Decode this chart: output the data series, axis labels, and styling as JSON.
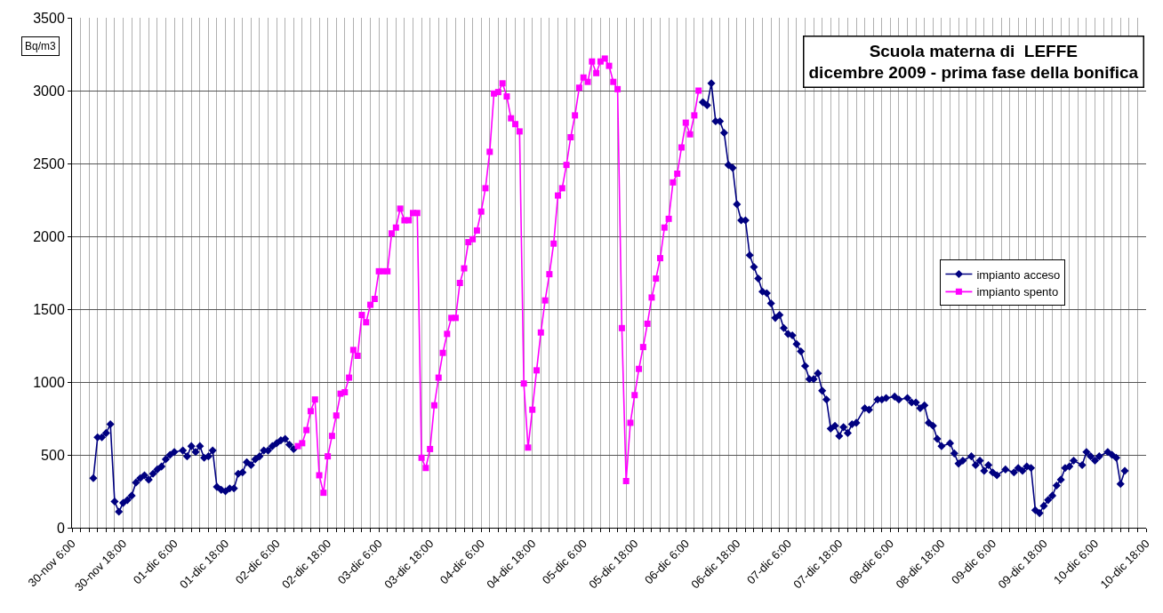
{
  "chart_data": {
    "type": "line",
    "title": "Scuola materna di  LEFFE\ndicembre 2009 - prima fase della bonifica",
    "ylabel": "Bq/m3",
    "xlim": [
      "--11-30T06:00",
      "--12-10T18:00"
    ],
    "ylim": [
      0,
      3500
    ],
    "yticks": [
      0,
      500,
      1000,
      1500,
      2000,
      2500,
      3000,
      3500
    ],
    "grid": true,
    "legend": "right",
    "line_style": "solid",
    "series": [
      {
        "name": "impianto acceso",
        "color": "#000080",
        "marker": "diamond",
        "x": [
          "--11-30T11:00",
          "--11-30T12:00",
          "--11-30T13:00",
          "--11-30T14:00",
          "--11-30T15:00",
          "--11-30T16:00",
          "--11-30T17:00",
          "--11-30T18:00",
          "--11-30T19:00",
          "--11-30T20:00",
          "--11-30T21:00",
          "--11-30T22:00",
          "--11-30T23:00",
          "--12-01T00:00",
          "--12-01T01:00",
          "--12-01T02:00",
          "--12-01T03:00",
          "--12-01T04:00",
          "--12-01T05:00",
          "--12-01T06:00",
          "--12-01T08:00",
          "--12-01T09:00",
          "--12-01T10:00",
          "--12-01T11:00",
          "--12-01T12:00",
          "--12-01T13:00",
          "--12-01T14:00",
          "--12-01T15:00",
          "--12-01T16:00",
          "--12-01T17:00",
          "--12-01T18:00",
          "--12-01T19:00",
          "--12-01T20:00",
          "--12-01T21:00",
          "--12-01T22:00",
          "--12-01T23:00",
          "--12-02T00:00",
          "--12-02T01:00",
          "--12-02T02:00",
          "--12-02T03:00",
          "--12-02T04:00",
          "--12-02T05:00",
          "--12-02T06:00",
          "--12-02T07:00",
          "--12-02T08:00",
          "--12-02T09:00",
          "--12-02T10:00",
          "--12-04T00:00",
          "--12-06T10:00",
          "--12-06T11:00",
          "--12-06T12:00",
          "--12-06T13:00",
          "--12-06T14:00",
          "--12-06T15:00",
          "--12-06T16:00",
          "--12-06T17:00",
          "--12-06T18:00",
          "--12-06T19:00",
          "--12-06T20:00",
          "--12-06T21:00",
          "--12-06T22:00",
          "--12-06T23:00",
          "--12-07T00:00",
          "--12-07T01:00",
          "--12-07T02:00",
          "--12-07T03:00",
          "--12-07T04:00",
          "--12-07T05:00",
          "--12-07T06:00",
          "--12-07T07:00",
          "--12-07T08:00",
          "--12-07T09:00",
          "--12-07T10:00",
          "--12-07T11:00",
          "--12-07T12:00",
          "--12-07T13:00",
          "--12-07T14:00",
          "--12-07T15:00",
          "--12-07T16:00",
          "--12-07T17:00",
          "--12-07T18:00",
          "--12-07T19:00",
          "--12-07T20:00",
          "--12-07T21:00",
          "--12-07T22:00",
          "--12-08T00:00",
          "--12-08T01:00",
          "--12-08T03:00",
          "--12-08T04:00",
          "--12-08T05:00",
          "--12-08T07:00",
          "--12-08T08:00",
          "--12-08T10:00",
          "--12-08T11:00",
          "--12-08T12:00",
          "--12-08T13:00",
          "--12-08T14:00",
          "--12-08T15:00",
          "--12-08T16:00",
          "--12-08T17:00",
          "--12-08T18:00",
          "--12-08T20:00",
          "--12-08T21:00",
          "--12-08T22:00",
          "--12-08T23:00",
          "--12-09T01:00",
          "--12-09T02:00",
          "--12-09T03:00",
          "--12-09T04:00",
          "--12-09T05:00",
          "--12-09T06:00",
          "--12-09T07:00",
          "--12-09T09:00",
          "--12-09T11:00",
          "--12-09T12:00",
          "--12-09T13:00",
          "--12-09T14:00",
          "--12-09T15:00",
          "--12-09T16:00",
          "--12-09T17:00",
          "--12-09T18:00",
          "--12-09T19:00",
          "--12-09T20:00",
          "--12-09T21:00",
          "--12-09T22:00",
          "--12-09T23:00",
          "--12-10T00:00",
          "--12-10T01:00",
          "--12-10T03:00",
          "--12-10T04:00",
          "--12-10T05:00",
          "--12-10T06:00",
          "--12-10T07:00",
          "--12-10T09:00",
          "--12-10T10:00",
          "--12-10T11:00",
          "--12-10T12:00",
          "--12-10T13:00"
        ],
        "values": [
          340,
          620,
          620,
          650,
          710,
          180,
          110,
          170,
          190,
          220,
          310,
          340,
          360,
          330,
          370,
          400,
          420,
          470,
          500,
          520,
          530,
          490,
          560,
          520,
          560,
          480,
          490,
          530,
          280,
          260,
          250,
          270,
          270,
          370,
          380,
          450,
          430,
          470,
          490,
          530,
          530,
          560,
          580,
          600,
          610,
          570,
          540,
          null,
          2920,
          2900,
          3050,
          2790,
          2790,
          2710,
          2490,
          2470,
          2220,
          2110,
          2110,
          1870,
          1790,
          1710,
          1620,
          1610,
          1540,
          1440,
          1460,
          1370,
          1330,
          1320,
          1260,
          1210,
          1110,
          1020,
          1020,
          1060,
          940,
          880,
          680,
          700,
          630,
          690,
          650,
          710,
          720,
          820,
          810,
          880,
          880,
          890,
          900,
          880,
          890,
          860,
          860,
          820,
          840,
          720,
          700,
          610,
          560,
          580,
          510,
          440,
          460,
          490,
          430,
          460,
          390,
          430,
          380,
          360,
          400,
          380,
          410,
          390,
          420,
          410,
          120,
          100,
          150,
          190,
          220,
          290,
          330,
          410,
          420,
          460,
          430,
          520,
          490,
          460,
          490,
          520,
          500,
          480,
          300,
          390
        ]
      },
      {
        "name": "impianto spento",
        "color": "#ff00ff",
        "marker": "square",
        "x": [
          "--12-02T11:00",
          "--12-02T12:00",
          "--12-02T13:00",
          "--12-02T14:00",
          "--12-02T15:00",
          "--12-02T16:00",
          "--12-02T17:00",
          "--12-02T18:00",
          "--12-02T19:00",
          "--12-02T20:00",
          "--12-02T21:00",
          "--12-02T22:00",
          "--12-02T23:00",
          "--12-03T00:00",
          "--12-03T01:00",
          "--12-03T02:00",
          "--12-03T03:00",
          "--12-03T04:00",
          "--12-03T05:00",
          "--12-03T06:00",
          "--12-03T07:00",
          "--12-03T08:00",
          "--12-03T09:00",
          "--12-03T10:00",
          "--12-03T11:00",
          "--12-03T12:00",
          "--12-03T13:00",
          "--12-03T14:00",
          "--12-03T15:00",
          "--12-03T16:00",
          "--12-03T17:00",
          "--12-03T18:00",
          "--12-03T19:00",
          "--12-03T20:00",
          "--12-03T21:00",
          "--12-03T22:00",
          "--12-03T23:00",
          "--12-04T00:00",
          "--12-04T01:00",
          "--12-04T02:00",
          "--12-04T03:00",
          "--12-04T04:00",
          "--12-04T05:00",
          "--12-04T06:00",
          "--12-04T07:00",
          "--12-04T08:00",
          "--12-04T09:00",
          "--12-04T10:00",
          "--12-04T11:00",
          "--12-04T12:00",
          "--12-04T13:00",
          "--12-04T14:00",
          "--12-04T15:00",
          "--12-04T16:00",
          "--12-04T17:00",
          "--12-04T18:00",
          "--12-04T19:00",
          "--12-04T20:00",
          "--12-04T21:00",
          "--12-04T22:00",
          "--12-04T23:00",
          "--12-05T00:00",
          "--12-05T01:00",
          "--12-05T02:00",
          "--12-05T03:00",
          "--12-05T04:00",
          "--12-05T05:00",
          "--12-05T06:00",
          "--12-05T07:00",
          "--12-05T08:00",
          "--12-05T09:00",
          "--12-05T10:00",
          "--12-05T11:00",
          "--12-05T12:00",
          "--12-05T13:00",
          "--12-05T14:00",
          "--12-05T15:00",
          "--12-05T16:00",
          "--12-05T17:00",
          "--12-05T18:00",
          "--12-05T19:00",
          "--12-05T20:00",
          "--12-05T21:00",
          "--12-05T22:00",
          "--12-05T23:00",
          "--12-06T00:00",
          "--12-06T01:00",
          "--12-06T02:00",
          "--12-06T03:00",
          "--12-06T04:00",
          "--12-06T05:00",
          "--12-06T06:00",
          "--12-06T07:00",
          "--12-06T08:00",
          "--12-06T09:00"
        ],
        "values": [
          560,
          580,
          670,
          800,
          880,
          360,
          240,
          490,
          630,
          770,
          920,
          930,
          1030,
          1220,
          1180,
          1460,
          1410,
          1530,
          1570,
          1760,
          1760,
          1760,
          2020,
          2060,
          2190,
          2110,
          2110,
          2160,
          2160,
          480,
          410,
          540,
          840,
          1030,
          1200,
          1330,
          1440,
          1440,
          1680,
          1780,
          1960,
          1980,
          2040,
          2170,
          2330,
          2580,
          2980,
          2990,
          3050,
          2960,
          2810,
          2770,
          2720,
          990,
          550,
          810,
          1080,
          1340,
          1560,
          1740,
          1950,
          2280,
          2330,
          2490,
          2680,
          2830,
          3020,
          3090,
          3060,
          3200,
          3120,
          3200,
          3220,
          3170,
          3060,
          3010,
          1370,
          320,
          720,
          910,
          1090,
          1240,
          1400,
          1580,
          1710,
          1850,
          2060,
          2120,
          2370,
          2430,
          2610,
          2780,
          2700,
          2830,
          3000
        ]
      }
    ],
    "xticks": [
      {
        "value": "--11-30T06:00",
        "label": "30-nov 6:00"
      },
      {
        "value": "--11-30T08:00",
        "label": null
      },
      {
        "value": "--11-30T10:00",
        "label": null
      },
      {
        "value": "--11-30T12:00",
        "label": null
      },
      {
        "value": "--11-30T14:00",
        "label": null
      },
      {
        "value": "--11-30T16:00",
        "label": null
      },
      {
        "value": "--11-30T18:00",
        "label": "30-nov 18:00"
      },
      {
        "value": "--11-30T20:00",
        "label": null
      },
      {
        "value": "--11-30T22:00",
        "label": null
      },
      {
        "value": "--12-01T00:00",
        "label": null
      },
      {
        "value": "--12-01T02:00",
        "label": null
      },
      {
        "value": "--12-01T04:00",
        "label": null
      },
      {
        "value": "--12-01T06:00",
        "label": "01-dic 6:00"
      },
      {
        "value": "--12-01T08:00",
        "label": null
      },
      {
        "value": "--12-01T10:00",
        "label": null
      },
      {
        "value": "--12-01T12:00",
        "label": null
      },
      {
        "value": "--12-01T14:00",
        "label": null
      },
      {
        "value": "--12-01T16:00",
        "label": null
      },
      {
        "value": "--12-01T18:00",
        "label": "01-dic 18:00"
      },
      {
        "value": "--12-01T20:00",
        "label": null
      },
      {
        "value": "--12-01T22:00",
        "label": null
      },
      {
        "value": "--12-02T00:00",
        "label": null
      },
      {
        "value": "--12-02T02:00",
        "label": null
      },
      {
        "value": "--12-02T04:00",
        "label": null
      },
      {
        "value": "--12-02T06:00",
        "label": "02-dic 6:00"
      },
      {
        "value": "--12-02T08:00",
        "label": null
      },
      {
        "value": "--12-02T10:00",
        "label": null
      },
      {
        "value": "--12-02T12:00",
        "label": null
      },
      {
        "value": "--12-02T14:00",
        "label": null
      },
      {
        "value": "--12-02T16:00",
        "label": null
      },
      {
        "value": "--12-02T18:00",
        "label": "02-dic 18:00"
      },
      {
        "value": "--12-02T20:00",
        "label": null
      },
      {
        "value": "--12-02T22:00",
        "label": null
      },
      {
        "value": "--12-03T00:00",
        "label": null
      },
      {
        "value": "--12-03T02:00",
        "label": null
      },
      {
        "value": "--12-03T04:00",
        "label": null
      },
      {
        "value": "--12-03T06:00",
        "label": "03-dic 6:00"
      },
      {
        "value": "--12-03T08:00",
        "label": null
      },
      {
        "value": "--12-03T10:00",
        "label": null
      },
      {
        "value": "--12-03T12:00",
        "label": null
      },
      {
        "value": "--12-03T14:00",
        "label": null
      },
      {
        "value": "--12-03T16:00",
        "label": null
      },
      {
        "value": "--12-03T18:00",
        "label": "03-dic 18:00"
      },
      {
        "value": "--12-03T20:00",
        "label": null
      },
      {
        "value": "--12-03T22:00",
        "label": null
      },
      {
        "value": "--12-04T00:00",
        "label": null
      },
      {
        "value": "--12-04T02:00",
        "label": null
      },
      {
        "value": "--12-04T04:00",
        "label": null
      },
      {
        "value": "--12-04T06:00",
        "label": "04-dic 6:00"
      },
      {
        "value": "--12-04T08:00",
        "label": null
      },
      {
        "value": "--12-04T10:00",
        "label": null
      },
      {
        "value": "--12-04T12:00",
        "label": null
      },
      {
        "value": "--12-04T14:00",
        "label": null
      },
      {
        "value": "--12-04T16:00",
        "label": null
      },
      {
        "value": "--12-04T18:00",
        "label": "04-dic 18:00"
      },
      {
        "value": "--12-04T20:00",
        "label": null
      },
      {
        "value": "--12-04T22:00",
        "label": null
      },
      {
        "value": "--12-05T00:00",
        "label": null
      },
      {
        "value": "--12-05T02:00",
        "label": null
      },
      {
        "value": "--12-05T04:00",
        "label": null
      },
      {
        "value": "--12-05T06:00",
        "label": "05-dic 6:00"
      },
      {
        "value": "--12-05T08:00",
        "label": null
      },
      {
        "value": "--12-05T10:00",
        "label": null
      },
      {
        "value": "--12-05T12:00",
        "label": null
      },
      {
        "value": "--12-05T14:00",
        "label": null
      },
      {
        "value": "--12-05T16:00",
        "label": null
      },
      {
        "value": "--12-05T18:00",
        "label": "05-dic 18:00"
      },
      {
        "value": "--12-05T20:00",
        "label": null
      },
      {
        "value": "--12-05T22:00",
        "label": null
      },
      {
        "value": "--12-06T00:00",
        "label": null
      },
      {
        "value": "--12-06T02:00",
        "label": null
      },
      {
        "value": "--12-06T04:00",
        "label": null
      },
      {
        "value": "--12-06T06:00",
        "label": "06-dic 6:00"
      },
      {
        "value": "--12-06T08:00",
        "label": null
      },
      {
        "value": "--12-06T10:00",
        "label": null
      },
      {
        "value": "--12-06T12:00",
        "label": null
      },
      {
        "value": "--12-06T14:00",
        "label": null
      },
      {
        "value": "--12-06T16:00",
        "label": null
      },
      {
        "value": "--12-06T18:00",
        "label": "06-dic 18:00"
      },
      {
        "value": "--12-06T20:00",
        "label": null
      },
      {
        "value": "--12-06T22:00",
        "label": null
      },
      {
        "value": "--12-07T00:00",
        "label": null
      },
      {
        "value": "--12-07T02:00",
        "label": null
      },
      {
        "value": "--12-07T04:00",
        "label": null
      },
      {
        "value": "--12-07T06:00",
        "label": "07-dic 6:00"
      },
      {
        "value": "--12-07T08:00",
        "label": null
      },
      {
        "value": "--12-07T10:00",
        "label": null
      },
      {
        "value": "--12-07T12:00",
        "label": null
      },
      {
        "value": "--12-07T14:00",
        "label": null
      },
      {
        "value": "--12-07T16:00",
        "label": null
      },
      {
        "value": "--12-07T18:00",
        "label": "07-dic 18:00"
      },
      {
        "value": "--12-07T20:00",
        "label": null
      },
      {
        "value": "--12-07T22:00",
        "label": null
      },
      {
        "value": "--12-08T00:00",
        "label": null
      },
      {
        "value": "--12-08T02:00",
        "label": null
      },
      {
        "value": "--12-08T04:00",
        "label": null
      },
      {
        "value": "--12-08T06:00",
        "label": "08-dic 6:00"
      },
      {
        "value": "--12-08T08:00",
        "label": null
      },
      {
        "value": "--12-08T10:00",
        "label": null
      },
      {
        "value": "--12-08T12:00",
        "label": null
      },
      {
        "value": "--12-08T14:00",
        "label": null
      },
      {
        "value": "--12-08T16:00",
        "label": null
      },
      {
        "value": "--12-08T18:00",
        "label": "08-dic 18:00"
      },
      {
        "value": "--12-08T20:00",
        "label": null
      },
      {
        "value": "--12-08T22:00",
        "label": null
      },
      {
        "value": "--12-09T00:00",
        "label": null
      },
      {
        "value": "--12-09T02:00",
        "label": null
      },
      {
        "value": "--12-09T04:00",
        "label": null
      },
      {
        "value": "--12-09T06:00",
        "label": "09-dic 6:00"
      },
      {
        "value": "--12-09T08:00",
        "label": null
      },
      {
        "value": "--12-09T10:00",
        "label": null
      },
      {
        "value": "--12-09T12:00",
        "label": null
      },
      {
        "value": "--12-09T14:00",
        "label": null
      },
      {
        "value": "--12-09T16:00",
        "label": null
      },
      {
        "value": "--12-09T18:00",
        "label": "09-dic 18:00"
      },
      {
        "value": "--12-09T20:00",
        "label": null
      },
      {
        "value": "--12-09T22:00",
        "label": null
      },
      {
        "value": "--12-10T00:00",
        "label": null
      },
      {
        "value": "--12-10T02:00",
        "label": null
      },
      {
        "value": "--12-10T04:00",
        "label": null
      },
      {
        "value": "--12-10T06:00",
        "label": "10-dic 6:00"
      },
      {
        "value": "--12-10T08:00",
        "label": null
      },
      {
        "value": "--12-10T10:00",
        "label": null
      },
      {
        "value": "--12-10T12:00",
        "label": null
      },
      {
        "value": "--12-10T14:00",
        "label": null
      },
      {
        "value": "--12-10T16:00",
        "label": null
      },
      {
        "value": "--12-10T18:00",
        "label": "10-dic 18:00"
      }
    ]
  }
}
